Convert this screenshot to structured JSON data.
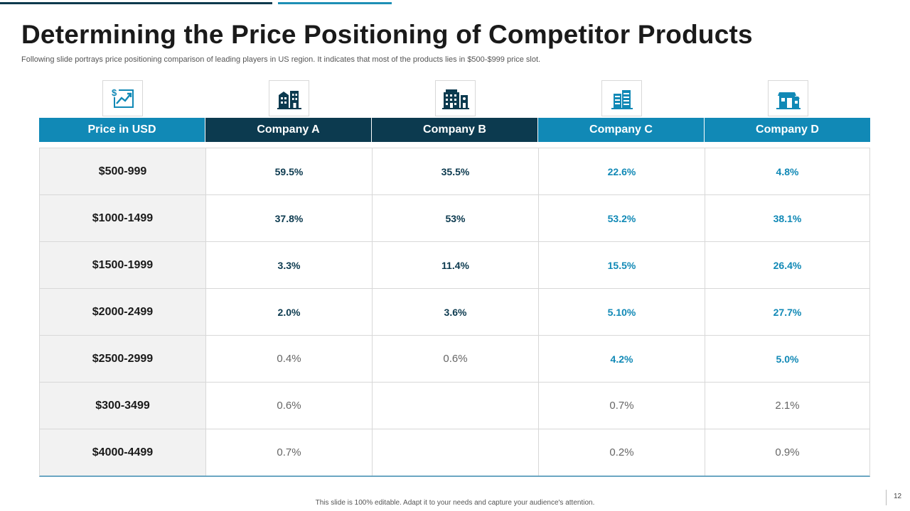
{
  "slide": {
    "title": "Determining the Price Positioning of Competitor Products",
    "subtitle": "Following slide portrays price positioning comparison of leading players in US region. It indicates that most of the products lies in $500-$999 price slot.",
    "footer": "This slide is 100% editable.  Adapt it to your needs and capture your audience's attention.",
    "page_number": "12"
  },
  "icons": [
    "dollar-chart-icon",
    "buildings-icon",
    "office-building-icon",
    "towers-icon",
    "storefront-icon"
  ],
  "colors": {
    "light_blue": "#1189b6",
    "dark_navy": "#0c3a4f",
    "price_bg": "#f2f2f2"
  },
  "table": {
    "headers": [
      "Price in USD",
      "Company A",
      "Company B",
      "Company C",
      "Company D"
    ],
    "rows": [
      {
        "price": "$500-999",
        "values": [
          "59.5%",
          "35.5%",
          "22.6%",
          "4.8%"
        ]
      },
      {
        "price": "$1000-1499",
        "values": [
          "37.8%",
          "53%",
          "53.2%",
          "38.1%"
        ]
      },
      {
        "price": "$1500-1999",
        "values": [
          "3.3%",
          "11.4%",
          "15.5%",
          "26.4%"
        ]
      },
      {
        "price": "$2000-2499",
        "values": [
          "2.0%",
          "3.6%",
          "5.10%",
          "27.7%"
        ]
      },
      {
        "price": "$2500-2999",
        "values": [
          "0.4%",
          "0.6%",
          "4.2%",
          "5.0%"
        ]
      },
      {
        "price": "$300-3499",
        "values": [
          "0.6%",
          "",
          "0.7%",
          "2.1%"
        ]
      },
      {
        "price": "$4000-4499",
        "values": [
          "0.7%",
          "",
          "0.2%",
          "0.9%"
        ]
      }
    ]
  }
}
